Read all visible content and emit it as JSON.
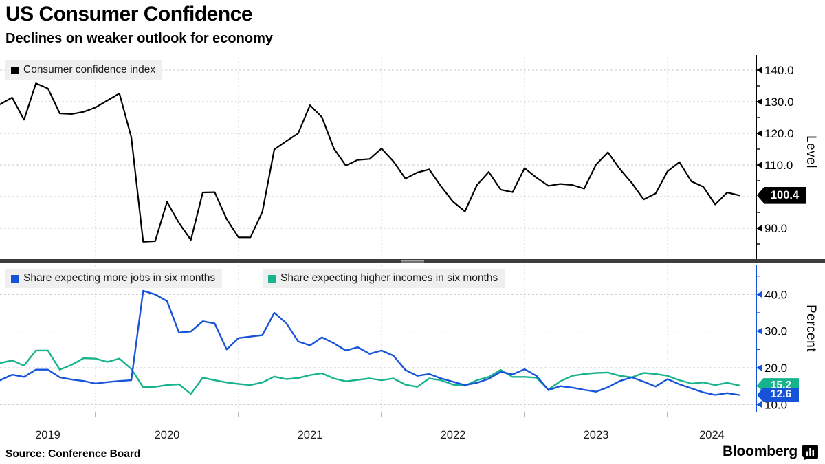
{
  "header": {
    "title": "US Consumer Confidence",
    "subtitle": "Declines on weaker outlook for economy"
  },
  "footer": {
    "source": "Source: Conference Board",
    "brand": "Bloomberg"
  },
  "colors": {
    "index_line": "#000000",
    "jobs_line": "#1753d8",
    "income_line": "#17b38c",
    "grid": "#cbcbcb",
    "legend_bg": "#efefef",
    "divider": "#3d3d3d",
    "top_axis": "#000000",
    "bottom_axis": "#1753d8",
    "badge_index_bg": "#000000",
    "badge_jobs_bg": "#1753d8",
    "badge_income_bg": "#17b38c"
  },
  "top_panel": {
    "legend": [
      {
        "label": "Consumer confidence index",
        "color": "#000000"
      }
    ],
    "axis_title": "Level",
    "badge": {
      "label": "100.4",
      "value": 100.4
    },
    "y_ticks": [
      {
        "value": 140,
        "label": "140.0"
      },
      {
        "value": 130,
        "label": "130.0"
      },
      {
        "value": 120,
        "label": "120.0"
      },
      {
        "value": 110,
        "label": "110.0"
      },
      {
        "value": 90,
        "label": "90.0"
      }
    ],
    "y_minor_ticks": [
      85,
      95,
      105,
      115,
      125,
      135
    ]
  },
  "bottom_panel": {
    "legend": [
      {
        "label": "Share expecting more jobs in six months",
        "color": "#1753d8"
      },
      {
        "label": "Share expecting higher incomes in six months",
        "color": "#17b38c"
      }
    ],
    "axis_title": "Percent",
    "badges": [
      {
        "label": "15.2",
        "value": 15.2,
        "color": "#17b38c"
      },
      {
        "label": "12.6",
        "value": 12.6,
        "color": "#1753d8"
      }
    ],
    "y_ticks": [
      {
        "value": 40,
        "label": "40.0"
      },
      {
        "value": 30,
        "label": "30.0"
      },
      {
        "value": 20,
        "label": "20.0"
      },
      {
        "value": 10,
        "label": "10.0"
      }
    ],
    "y_minor_ticks": [
      15,
      25,
      35,
      45
    ]
  },
  "x_axis": {
    "year_labels": [
      "2019",
      "2020",
      "2021",
      "2022",
      "2023",
      "2024"
    ],
    "start_month": "2019-04",
    "end_month": "2024-06",
    "frequency": "monthly"
  },
  "chart_data": {
    "type": "line",
    "x_start": "2019-04",
    "x_end": "2024-06",
    "frequency": "monthly",
    "panels": [
      {
        "name": "consumer-confidence",
        "ylabel": "Level",
        "ylim": [
          80,
          144.8
        ],
        "yticks": [
          90,
          100,
          110,
          120,
          130,
          140
        ],
        "series": [
          {
            "name": "Consumer confidence index",
            "color": "#000000",
            "last_value": 100.4,
            "values": [
              129.2,
              131.3,
              124.3,
              135.8,
              134.2,
              126.3,
              126.1,
              126.8,
              128.2,
              130.4,
              132.6,
              118.8,
              85.7,
              85.9,
              98.3,
              91.7,
              86.3,
              101.3,
              101.4,
              92.9,
              87.1,
              87.1,
              95.2,
              114.9,
              117.5,
              120.0,
              128.9,
              125.1,
              115.2,
              109.8,
              111.6,
              111.9,
              115.2,
              111.1,
              105.7,
              107.6,
              108.6,
              103.2,
              98.4,
              95.3,
              103.6,
              107.8,
              102.2,
              101.4,
              109.0,
              106.0,
              103.4,
              104.0,
              103.7,
              102.5,
              110.1,
              114.0,
              108.7,
              104.3,
              99.1,
              101.0,
              108.0,
              110.9,
              104.8,
              103.1,
              97.5,
              101.3,
              100.4
            ]
          }
        ]
      },
      {
        "name": "expectations",
        "ylabel": "Percent",
        "ylim": [
          5.9,
          48.0
        ],
        "yticks": [
          10,
          20,
          30,
          40
        ],
        "series": [
          {
            "name": "Share expecting more jobs in six months",
            "color": "#1753d8",
            "last_value": 12.6,
            "values": [
              16.6,
              18.1,
              17.5,
              19.5,
              19.5,
              17.4,
              16.8,
              16.4,
              15.7,
              16.1,
              16.4,
              16.6,
              41.0,
              40.0,
              38.2,
              29.6,
              29.9,
              32.7,
              32.1,
              25.0,
              28.1,
              28.5,
              28.9,
              35.0,
              32.2,
              27.2,
              26.1,
              28.3,
              26.7,
              24.7,
              25.6,
              23.8,
              24.7,
              23.3,
              19.4,
              17.8,
              18.3,
              17.1,
              16.2,
              15.3,
              15.9,
              17.0,
              18.9,
              18.2,
              19.6,
              17.8,
              13.9,
              15.0,
              14.6,
              14.0,
              13.5,
              14.7,
              16.4,
              17.4,
              16.2,
              14.9,
              16.9,
              15.5,
              14.4,
              13.3,
              12.6,
              13.1,
              12.6
            ]
          },
          {
            "name": "Share expecting higher incomes in six months",
            "color": "#17b38c",
            "last_value": 15.2,
            "values": [
              21.3,
              22.0,
              20.6,
              24.7,
              24.7,
              19.5,
              20.8,
              22.6,
              22.5,
              21.6,
              22.5,
              19.7,
              14.7,
              14.8,
              15.3,
              15.5,
              12.9,
              17.3,
              16.6,
              16.0,
              15.6,
              15.3,
              16.0,
              17.6,
              16.9,
              17.2,
              18.0,
              18.5,
              17.1,
              16.3,
              16.7,
              17.1,
              16.6,
              17.1,
              15.4,
              14.8,
              17.1,
              16.6,
              15.4,
              15.1,
              16.6,
              17.5,
              19.4,
              17.5,
              17.5,
              17.3,
              14.1,
              16.3,
              17.8,
              18.3,
              18.6,
              18.7,
              17.8,
              17.4,
              18.6,
              18.3,
              17.8,
              16.6,
              15.7,
              16.0,
              15.3,
              15.9,
              15.2
            ]
          }
        ]
      }
    ]
  }
}
